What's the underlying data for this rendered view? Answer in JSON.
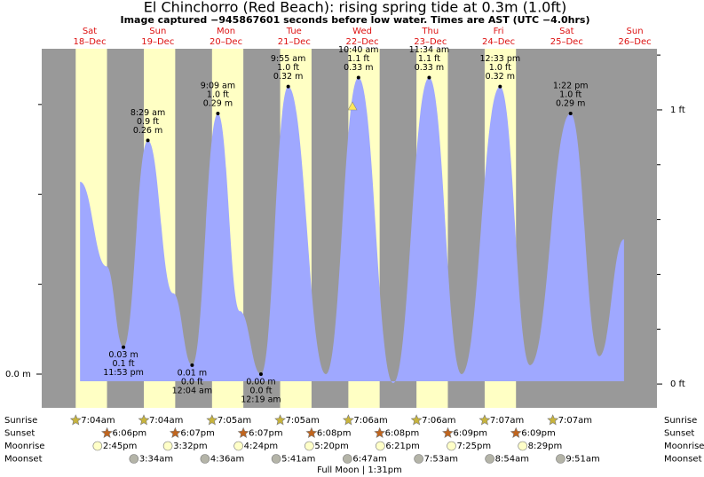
{
  "chart_data": {
    "type": "tide",
    "title": "El Chinchorro (Red Beach): rising  spring tide at 0.3m (1.0ft)",
    "subtitle": "Image captured −945867601 seconds before low water. Times are AST (UTC −4.0hrs)",
    "days": [
      {
        "weekday": "Sat",
        "date": "18–Dec"
      },
      {
        "weekday": "Sun",
        "date": "19–Dec"
      },
      {
        "weekday": "Mon",
        "date": "20–Dec"
      },
      {
        "weekday": "Tue",
        "date": "21–Dec"
      },
      {
        "weekday": "Wed",
        "date": "22–Dec"
      },
      {
        "weekday": "Thu",
        "date": "23–Dec"
      },
      {
        "weekday": "Fri",
        "date": "24–Dec"
      },
      {
        "weekday": "Sat",
        "date": "25–Dec"
      },
      {
        "weekday": "Sun",
        "date": "26–Dec"
      }
    ],
    "xlim": [
      -4.9,
      211.8
    ],
    "ylim": [
      -0.0375,
      0.362
    ],
    "yticks": [
      {
        "value": 0,
        "label": "0.0 m"
      }
    ],
    "yminor": [
      0.1,
      0.2,
      0.3
    ],
    "y2lim": [
      -0.087,
      1.223
    ],
    "y2ticks": [
      {
        "value": 0,
        "label": "0 ft"
      },
      {
        "value": 1,
        "label": "1 ft"
      }
    ],
    "y2minor": [
      0.2,
      0.4,
      0.6,
      0.8,
      1.2
    ],
    "tide": {
      "color": "#9fa8ff",
      "x": [
        8.6,
        17.9,
        23.88,
        32.48,
        41.4,
        48.07,
        57.15,
        64.9,
        72.32,
        81.92,
        95.2,
        106.67,
        118.9,
        131.57,
        143.0,
        156.55,
        167.1,
        181.37,
        191.5,
        200.2
      ],
      "values": [
        0.214,
        0.12,
        0.03,
        0.26,
        0.09,
        0.01,
        0.29,
        0.07,
        0.0,
        0.32,
        0.0,
        0.33,
        -0.01,
        0.33,
        0.0,
        0.32,
        0.01,
        0.29,
        0.02,
        0.15
      ]
    },
    "extremes": [
      {
        "kind": "low",
        "x": 23.88,
        "value": 0.03,
        "value_label": "0.03 m",
        "feet": "0.1 ft",
        "time": "11:53 pm"
      },
      {
        "kind": "high",
        "x": 32.48,
        "value": 0.26,
        "value_label": "0.26 m",
        "feet": "0.9 ft",
        "time": "8:29 am"
      },
      {
        "kind": "low",
        "x": 48.07,
        "value": 0.01,
        "value_label": "0.01 m",
        "feet": "0.0 ft",
        "time": "12:04 am"
      },
      {
        "kind": "high",
        "x": 57.15,
        "value": 0.29,
        "value_label": "0.29 m",
        "feet": "1.0 ft",
        "time": "9:09 am"
      },
      {
        "kind": "low",
        "x": 72.32,
        "value": 0.0,
        "value_label": "0.00 m",
        "feet": "0.0 ft",
        "time": "12:19 am"
      },
      {
        "kind": "high",
        "x": 81.92,
        "value": 0.32,
        "value_label": "0.32 m",
        "feet": "1.0 ft",
        "time": "9:55 am"
      },
      {
        "kind": "high",
        "x": 106.67,
        "value": 0.33,
        "value_label": "0.33 m",
        "feet": "1.1 ft",
        "time": "10:40 am"
      },
      {
        "kind": "high",
        "x": 131.57,
        "value": 0.33,
        "value_label": "0.33 m",
        "feet": "1.1 ft",
        "time": "11:34 am"
      },
      {
        "kind": "high",
        "x": 156.55,
        "value": 0.32,
        "value_label": "0.32 m",
        "feet": "1.0 ft",
        "time": "12:33 pm"
      },
      {
        "kind": "high",
        "x": 181.37,
        "value": 0.29,
        "value_label": "0.29 m",
        "feet": "1.0 ft",
        "time": "1:22 pm"
      }
    ],
    "astro": [
      {
        "name": "Sunrise",
        "icon": "star",
        "color": "#c8b43c",
        "times": [
          "7:04am",
          "7:04am",
          "7:05am",
          "7:05am",
          "7:06am",
          "7:06am",
          "7:07am",
          "7:07am"
        ]
      },
      {
        "name": "Sunset",
        "icon": "star",
        "color": "#c0651e",
        "times": [
          "6:06pm",
          "6:07pm",
          "6:07pm",
          "6:08pm",
          "6:08pm",
          "6:09pm",
          "6:09pm",
          null
        ]
      },
      {
        "name": "Moonrise",
        "icon": "circle",
        "color": "#ffffc8",
        "times": [
          "2:45pm",
          "3:32pm",
          "4:24pm",
          "5:20pm",
          "6:21pm",
          "7:25pm",
          "8:29pm",
          null
        ]
      },
      {
        "name": "Moonset",
        "icon": "circle",
        "color": "#b4b4a8",
        "times": [
          null,
          "3:34am",
          "4:36am",
          "5:41am",
          "6:47am",
          "7:53am",
          "8:54am",
          "9:51am"
        ]
      }
    ],
    "moon_phase": "Full Moon | 1:31pm",
    "colors": {
      "night": "#999999",
      "day": "#ffffc4",
      "date": "#dd1111"
    }
  }
}
